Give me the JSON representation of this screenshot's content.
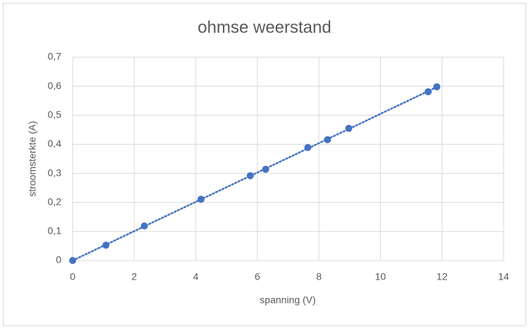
{
  "chart_data": {
    "type": "scatter",
    "title": "ohmse weerstand",
    "x_label": "spanning (V)",
    "y_label": "stroomsterkte (A)",
    "x": [
      0,
      1.08,
      2.33,
      4.17,
      5.77,
      6.27,
      7.64,
      8.28,
      8.97,
      11.55,
      11.83
    ],
    "series": [
      {
        "color": "#4472c4",
        "values": [
          0,
          0.053,
          0.119,
          0.211,
          0.292,
          0.314,
          0.389,
          0.416,
          0.455,
          0.581,
          0.598
        ]
      }
    ],
    "trendline": "linear",
    "xlim": [
      0,
      14
    ],
    "xticks": [
      0,
      2,
      4,
      6,
      8,
      10,
      12,
      14
    ],
    "ylim": [
      0,
      0.7
    ],
    "yticks": [
      0,
      {
        "value": 0.1,
        "label": "0,1"
      },
      {
        "value": 0.2,
        "label": "0,2"
      },
      {
        "value": 0.3,
        "label": "0,3"
      },
      {
        "value": 0.4,
        "label": "0,4"
      },
      {
        "value": 0.5,
        "label": "0,5"
      },
      {
        "value": 0.6,
        "label": "0,6"
      },
      {
        "value": 0.7,
        "label": "0,7"
      }
    ],
    "grid": true
  }
}
